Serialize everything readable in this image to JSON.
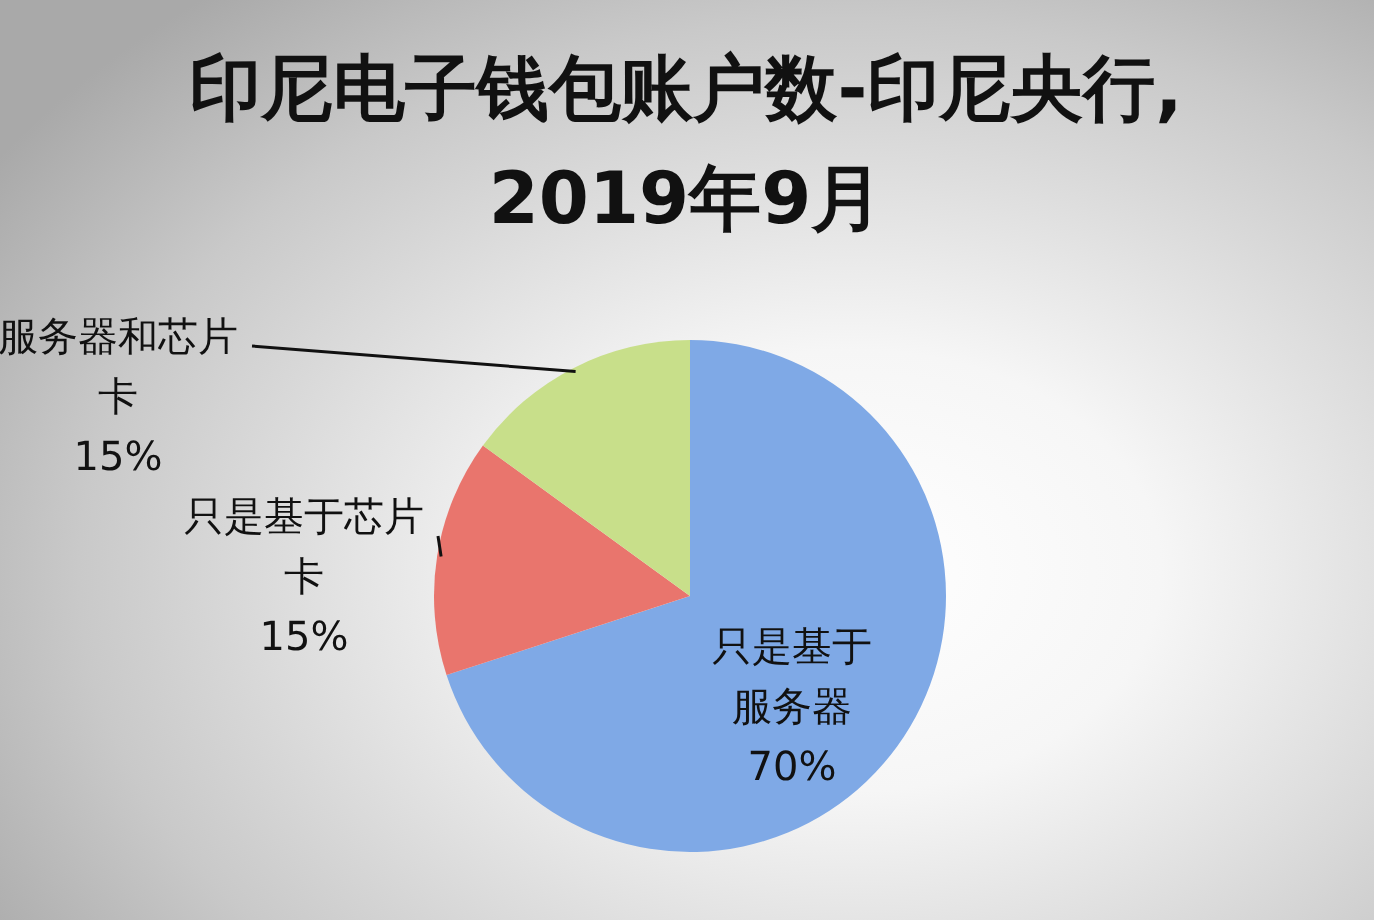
{
  "chart_data": {
    "type": "pie",
    "title": "印尼电子钱包账户数-印尼央行, 2019年9月",
    "categories": [
      "只是基于服务器",
      "只是基于芯片卡",
      "服务器和芯片卡"
    ],
    "values": [
      70,
      15,
      15
    ],
    "value_labels": [
      "70%",
      "15%",
      "15%"
    ],
    "colors": [
      "#7fa9e6",
      "#e9756d",
      "#c8df8a"
    ]
  }
}
